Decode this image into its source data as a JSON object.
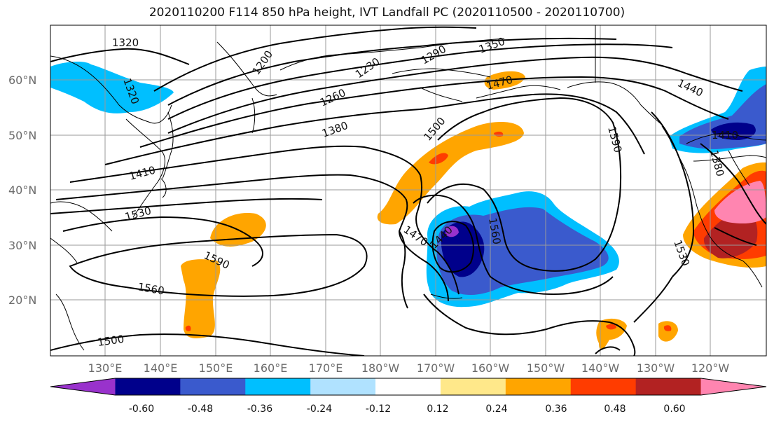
{
  "title": "2020110200 F114 850 hPa height, IVT Landfall PC (2020110500 - 2020110700)",
  "map": {
    "lat_labels": [
      "60°N",
      "50°N",
      "40°N",
      "30°N",
      "20°N"
    ],
    "lon_labels": [
      "130°E",
      "140°E",
      "150°E",
      "160°E",
      "170°E",
      "180°W",
      "170°W",
      "160°W",
      "150°W",
      "140°W",
      "130°W",
      "120°W"
    ],
    "contour_labels": [
      "1320",
      "1320",
      "1200",
      "1230",
      "1290",
      "1350",
      "1260",
      "1380",
      "1470",
      "1500",
      "1440",
      "1410",
      "1590",
      "1410",
      "1380",
      "1530",
      "1470",
      "1440",
      "1560",
      "1590",
      "1560",
      "1500",
      "1530"
    ]
  },
  "colorbar": {
    "tick_labels": [
      "-0.60",
      "-0.48",
      "-0.36",
      "-0.24",
      "-0.12",
      "0.12",
      "0.24",
      "0.36",
      "0.48",
      "0.60"
    ],
    "colors": [
      "#9932cc",
      "#00008b",
      "#3a5acd",
      "#00bfff",
      "#b0e2ff",
      "#ffffff",
      "#ffe88a",
      "#ffa500",
      "#ff3c00",
      "#b22222",
      "#ff85b0"
    ]
  }
}
